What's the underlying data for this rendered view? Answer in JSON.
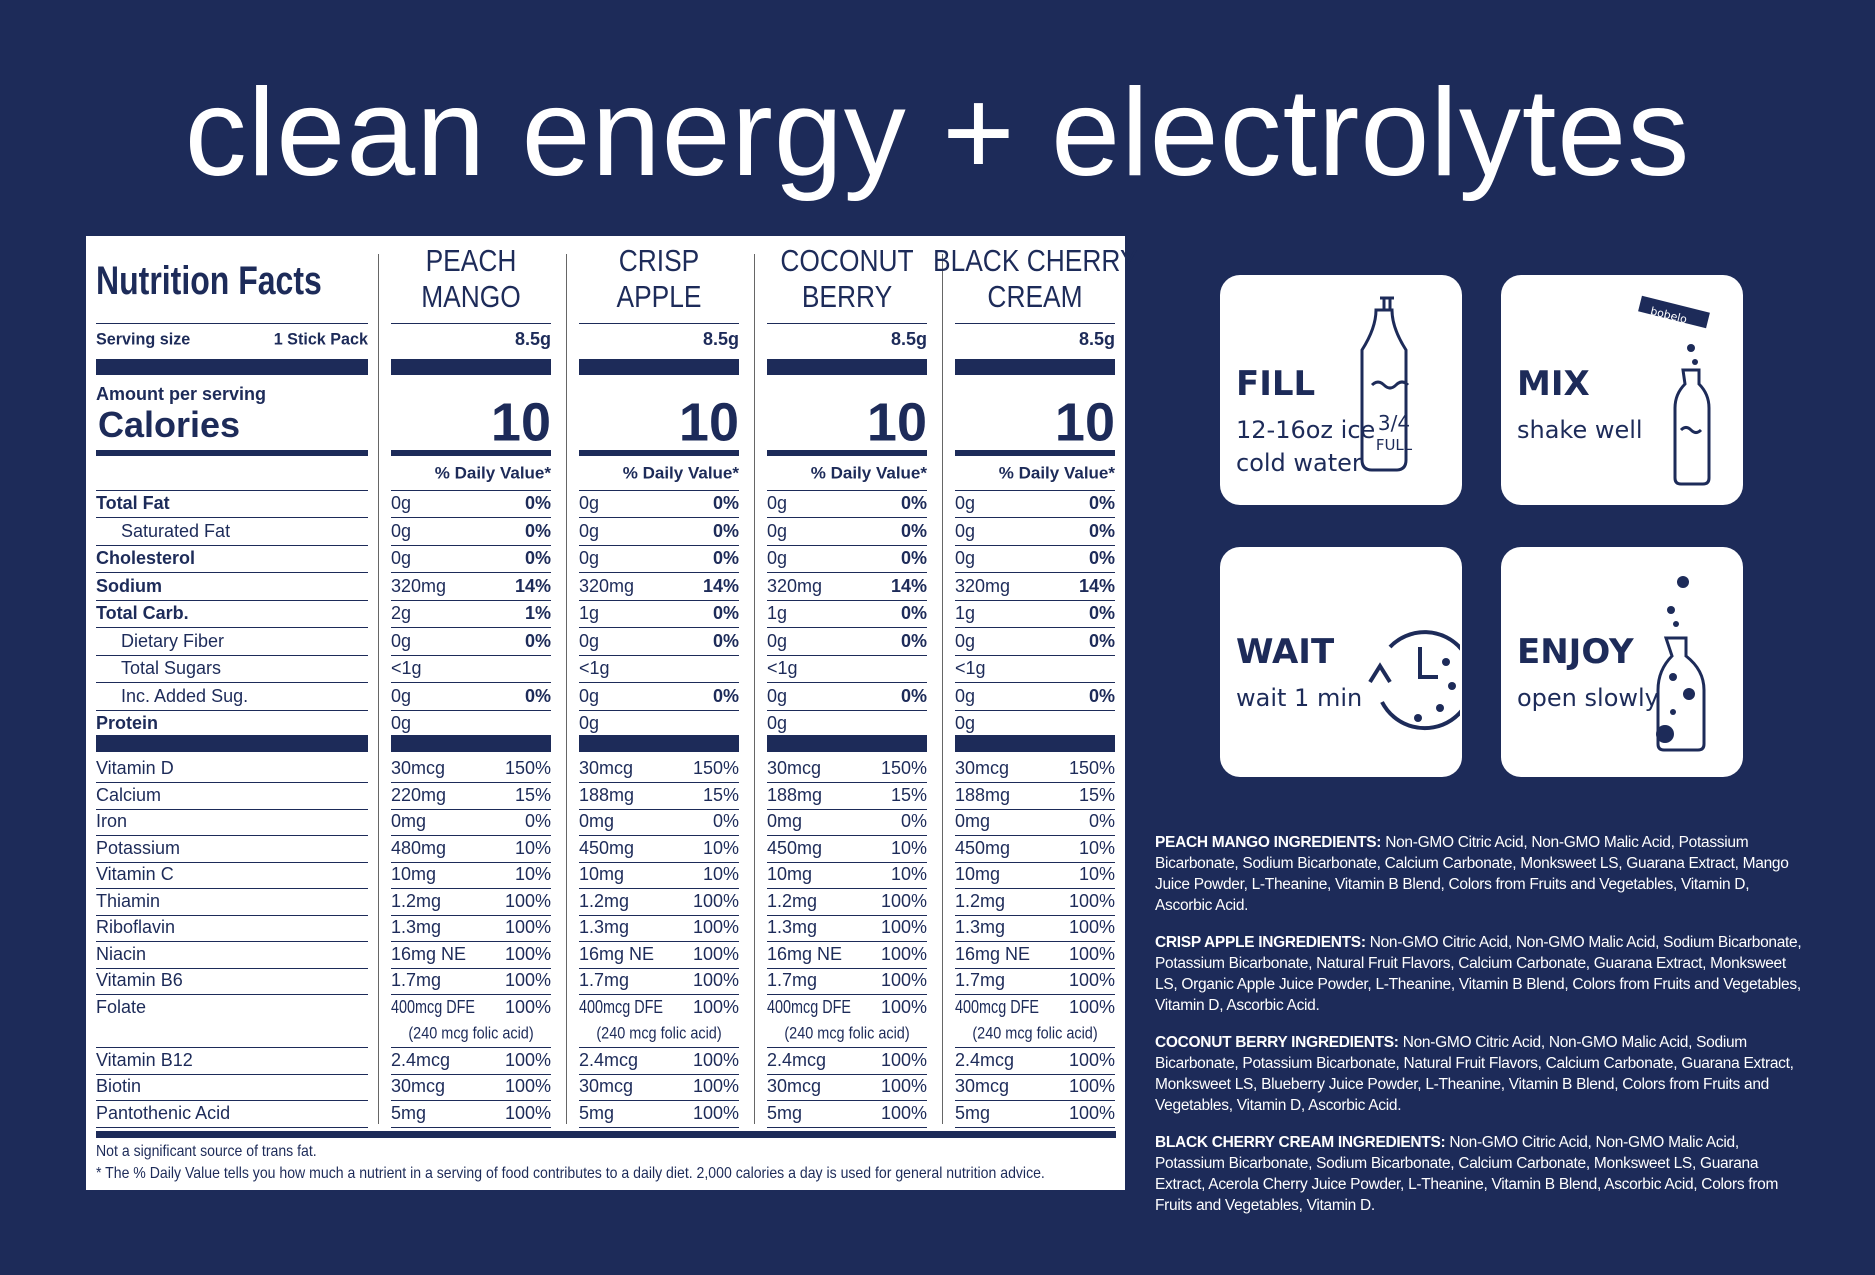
{
  "title": "clean energy + electrolytes",
  "nutrition": {
    "heading": "Nutrition Facts",
    "serving_size_label": "Serving size",
    "serving_size": "1 Stick Pack",
    "amount_per_serving": "Amount per serving",
    "calories_label": "Calories",
    "dv_header": "% Daily Value*",
    "main_nutrients": [
      {
        "label": "Total Fat",
        "bold": true
      },
      {
        "label": "Saturated Fat",
        "indent": true
      },
      {
        "label": "Cholesterol",
        "bold": true
      },
      {
        "label": "Sodium",
        "bold": true
      },
      {
        "label": "Total Carb.",
        "bold": true
      },
      {
        "label": "Dietary Fiber",
        "indent": true
      },
      {
        "label": "Total Sugars",
        "indent": true
      },
      {
        "label": "Inc. Added Sug.",
        "indent": true
      },
      {
        "label": "Protein",
        "bold": true
      }
    ],
    "vitamins": [
      "Vitamin D",
      "Calcium",
      "Iron",
      "Potassium",
      "Vitamin C",
      "Thiamin",
      "Riboflavin",
      "Niacin",
      "Vitamin B6",
      "Folate",
      "Vitamin B12",
      "Biotin",
      "Pantothenic Acid"
    ],
    "flavors": [
      {
        "name": [
          "PEACH",
          "MANGO"
        ],
        "serving_weight": "8.5g",
        "calories": 10,
        "main": [
          [
            "0g",
            "0%"
          ],
          [
            "0g",
            "0%"
          ],
          [
            "0g",
            "0%"
          ],
          [
            "320mg",
            "14%"
          ],
          [
            "2g",
            "1%"
          ],
          [
            "0g",
            "0%"
          ],
          [
            "<1g"
          ],
          [
            "0g",
            "0%"
          ],
          [
            "0g"
          ]
        ],
        "vitamins": [
          [
            "30mcg",
            "150%"
          ],
          [
            "220mg",
            "15%"
          ],
          [
            "0mg",
            "0%"
          ],
          [
            "480mg",
            "10%"
          ],
          [
            "10mg",
            "10%"
          ],
          [
            "1.2mg",
            "100%"
          ],
          [
            "1.3mg",
            "100%"
          ],
          [
            "16mg NE",
            "100%"
          ],
          [
            "1.7mg",
            "100%"
          ],
          [
            "400mcg DFE",
            "100%",
            "(240 mcg folic acid)"
          ],
          [
            "2.4mcg",
            "100%"
          ],
          [
            "30mcg",
            "100%"
          ],
          [
            "5mg",
            "100%"
          ]
        ]
      },
      {
        "name": [
          "CRISP",
          "APPLE"
        ],
        "serving_weight": "8.5g",
        "calories": 10,
        "main": [
          [
            "0g",
            "0%"
          ],
          [
            "0g",
            "0%"
          ],
          [
            "0g",
            "0%"
          ],
          [
            "320mg",
            "14%"
          ],
          [
            "1g",
            "0%"
          ],
          [
            "0g",
            "0%"
          ],
          [
            "<1g"
          ],
          [
            "0g",
            "0%"
          ],
          [
            "0g"
          ]
        ],
        "vitamins": [
          [
            "30mcg",
            "150%"
          ],
          [
            "188mg",
            "15%"
          ],
          [
            "0mg",
            "0%"
          ],
          [
            "450mg",
            "10%"
          ],
          [
            "10mg",
            "10%"
          ],
          [
            "1.2mg",
            "100%"
          ],
          [
            "1.3mg",
            "100%"
          ],
          [
            "16mg NE",
            "100%"
          ],
          [
            "1.7mg",
            "100%"
          ],
          [
            "400mcg DFE",
            "100%",
            "(240 mcg folic acid)"
          ],
          [
            "2.4mcg",
            "100%"
          ],
          [
            "30mcg",
            "100%"
          ],
          [
            "5mg",
            "100%"
          ]
        ]
      },
      {
        "name": [
          "COCONUT",
          "BERRY"
        ],
        "serving_weight": "8.5g",
        "calories": 10,
        "main": [
          [
            "0g",
            "0%"
          ],
          [
            "0g",
            "0%"
          ],
          [
            "0g",
            "0%"
          ],
          [
            "320mg",
            "14%"
          ],
          [
            "1g",
            "0%"
          ],
          [
            "0g",
            "0%"
          ],
          [
            "<1g"
          ],
          [
            "0g",
            "0%"
          ],
          [
            "0g"
          ]
        ],
        "vitamins": [
          [
            "30mcg",
            "150%"
          ],
          [
            "188mg",
            "15%"
          ],
          [
            "0mg",
            "0%"
          ],
          [
            "450mg",
            "10%"
          ],
          [
            "10mg",
            "10%"
          ],
          [
            "1.2mg",
            "100%"
          ],
          [
            "1.3mg",
            "100%"
          ],
          [
            "16mg NE",
            "100%"
          ],
          [
            "1.7mg",
            "100%"
          ],
          [
            "400mcg DFE",
            "100%",
            "(240 mcg folic acid)"
          ],
          [
            "2.4mcg",
            "100%"
          ],
          [
            "30mcg",
            "100%"
          ],
          [
            "5mg",
            "100%"
          ]
        ]
      },
      {
        "name": [
          "BLACK CHERRY",
          "CREAM"
        ],
        "serving_weight": "8.5g",
        "calories": 10,
        "main": [
          [
            "0g",
            "0%"
          ],
          [
            "0g",
            "0%"
          ],
          [
            "0g",
            "0%"
          ],
          [
            "320mg",
            "14%"
          ],
          [
            "1g",
            "0%"
          ],
          [
            "0g",
            "0%"
          ],
          [
            "<1g"
          ],
          [
            "0g",
            "0%"
          ],
          [
            "0g"
          ]
        ],
        "vitamins": [
          [
            "30mcg",
            "150%"
          ],
          [
            "188mg",
            "15%"
          ],
          [
            "0mg",
            "0%"
          ],
          [
            "450mg",
            "10%"
          ],
          [
            "10mg",
            "10%"
          ],
          [
            "1.2mg",
            "100%"
          ],
          [
            "1.3mg",
            "100%"
          ],
          [
            "16mg NE",
            "100%"
          ],
          [
            "1.7mg",
            "100%"
          ],
          [
            "400mcg DFE",
            "100%",
            "(240 mcg folic acid)"
          ],
          [
            "2.4mcg",
            "100%"
          ],
          [
            "30mcg",
            "100%"
          ],
          [
            "5mg",
            "100%"
          ]
        ]
      }
    ],
    "footnotes": [
      "Not a significant source of trans fat.",
      "* The % Daily Value tells you how much a nutrient in a serving of food contributes to a daily diet. 2,000 calories a day is used for general nutrition advice."
    ]
  },
  "steps": [
    {
      "title": "FILL",
      "lines": [
        "12-16oz ice",
        "cold water"
      ],
      "icon_text": [
        "3/4",
        "FULL"
      ]
    },
    {
      "title": "MIX",
      "lines": [
        "shake well"
      ],
      "icon_text": [
        "bobelo"
      ]
    },
    {
      "title": "WAIT",
      "lines": [
        "wait 1 min"
      ]
    },
    {
      "title": "ENJOY",
      "lines": [
        "open slowly"
      ]
    }
  ],
  "ingredients": [
    {
      "heading": "PEACH MANGO INGREDIENTS:",
      "text": "Non-GMO Citric Acid, Non-GMO Malic Acid, Potassium Bicarbonate, Sodium Bicarbonate, Calcium Carbonate, Monksweet LS, Guarana Extract, Mango Juice Powder, L-Theanine, Vitamin B Blend, Colors from Fruits and Vegetables, Vitamin D, Ascorbic Acid."
    },
    {
      "heading": "CRISP APPLE INGREDIENTS:",
      "text": "Non-GMO Citric Acid, Non-GMO Malic Acid, Sodium Bicarbonate, Potassium Bicarbonate, Natural Fruit Flavors, Calcium Carbonate, Guarana Extract, Monksweet LS, Organic Apple Juice Powder, L-Theanine, Vitamin B Blend, Colors from Fruits and Vegetables, Vitamin D, Ascorbic Acid."
    },
    {
      "heading": "COCONUT BERRY INGREDIENTS:",
      "text": "Non-GMO Citric Acid, Non-GMO Malic Acid, Sodium Bicarbonate, Potassium Bicarbonate, Natural Fruit Flavors, Calcium Carbonate, Guarana Extract, Monksweet LS, Blueberry Juice Powder, L-Theanine, Vitamin B Blend, Colors from Fruits and Vegetables, Vitamin D, Ascorbic Acid."
    },
    {
      "heading": "BLACK CHERRY CREAM INGREDIENTS:",
      "text": "Non-GMO Citric Acid, Non-GMO Malic Acid, Potassium Bicarbonate, Sodium Bicarbonate, Calcium Carbonate, Monksweet LS, Guarana Extract, Acerola Cherry Juice Powder, L-Theanine, Vitamin B Blend, Ascorbic Acid, Colors from Fruits and Vegetables, Vitamin D."
    }
  ]
}
